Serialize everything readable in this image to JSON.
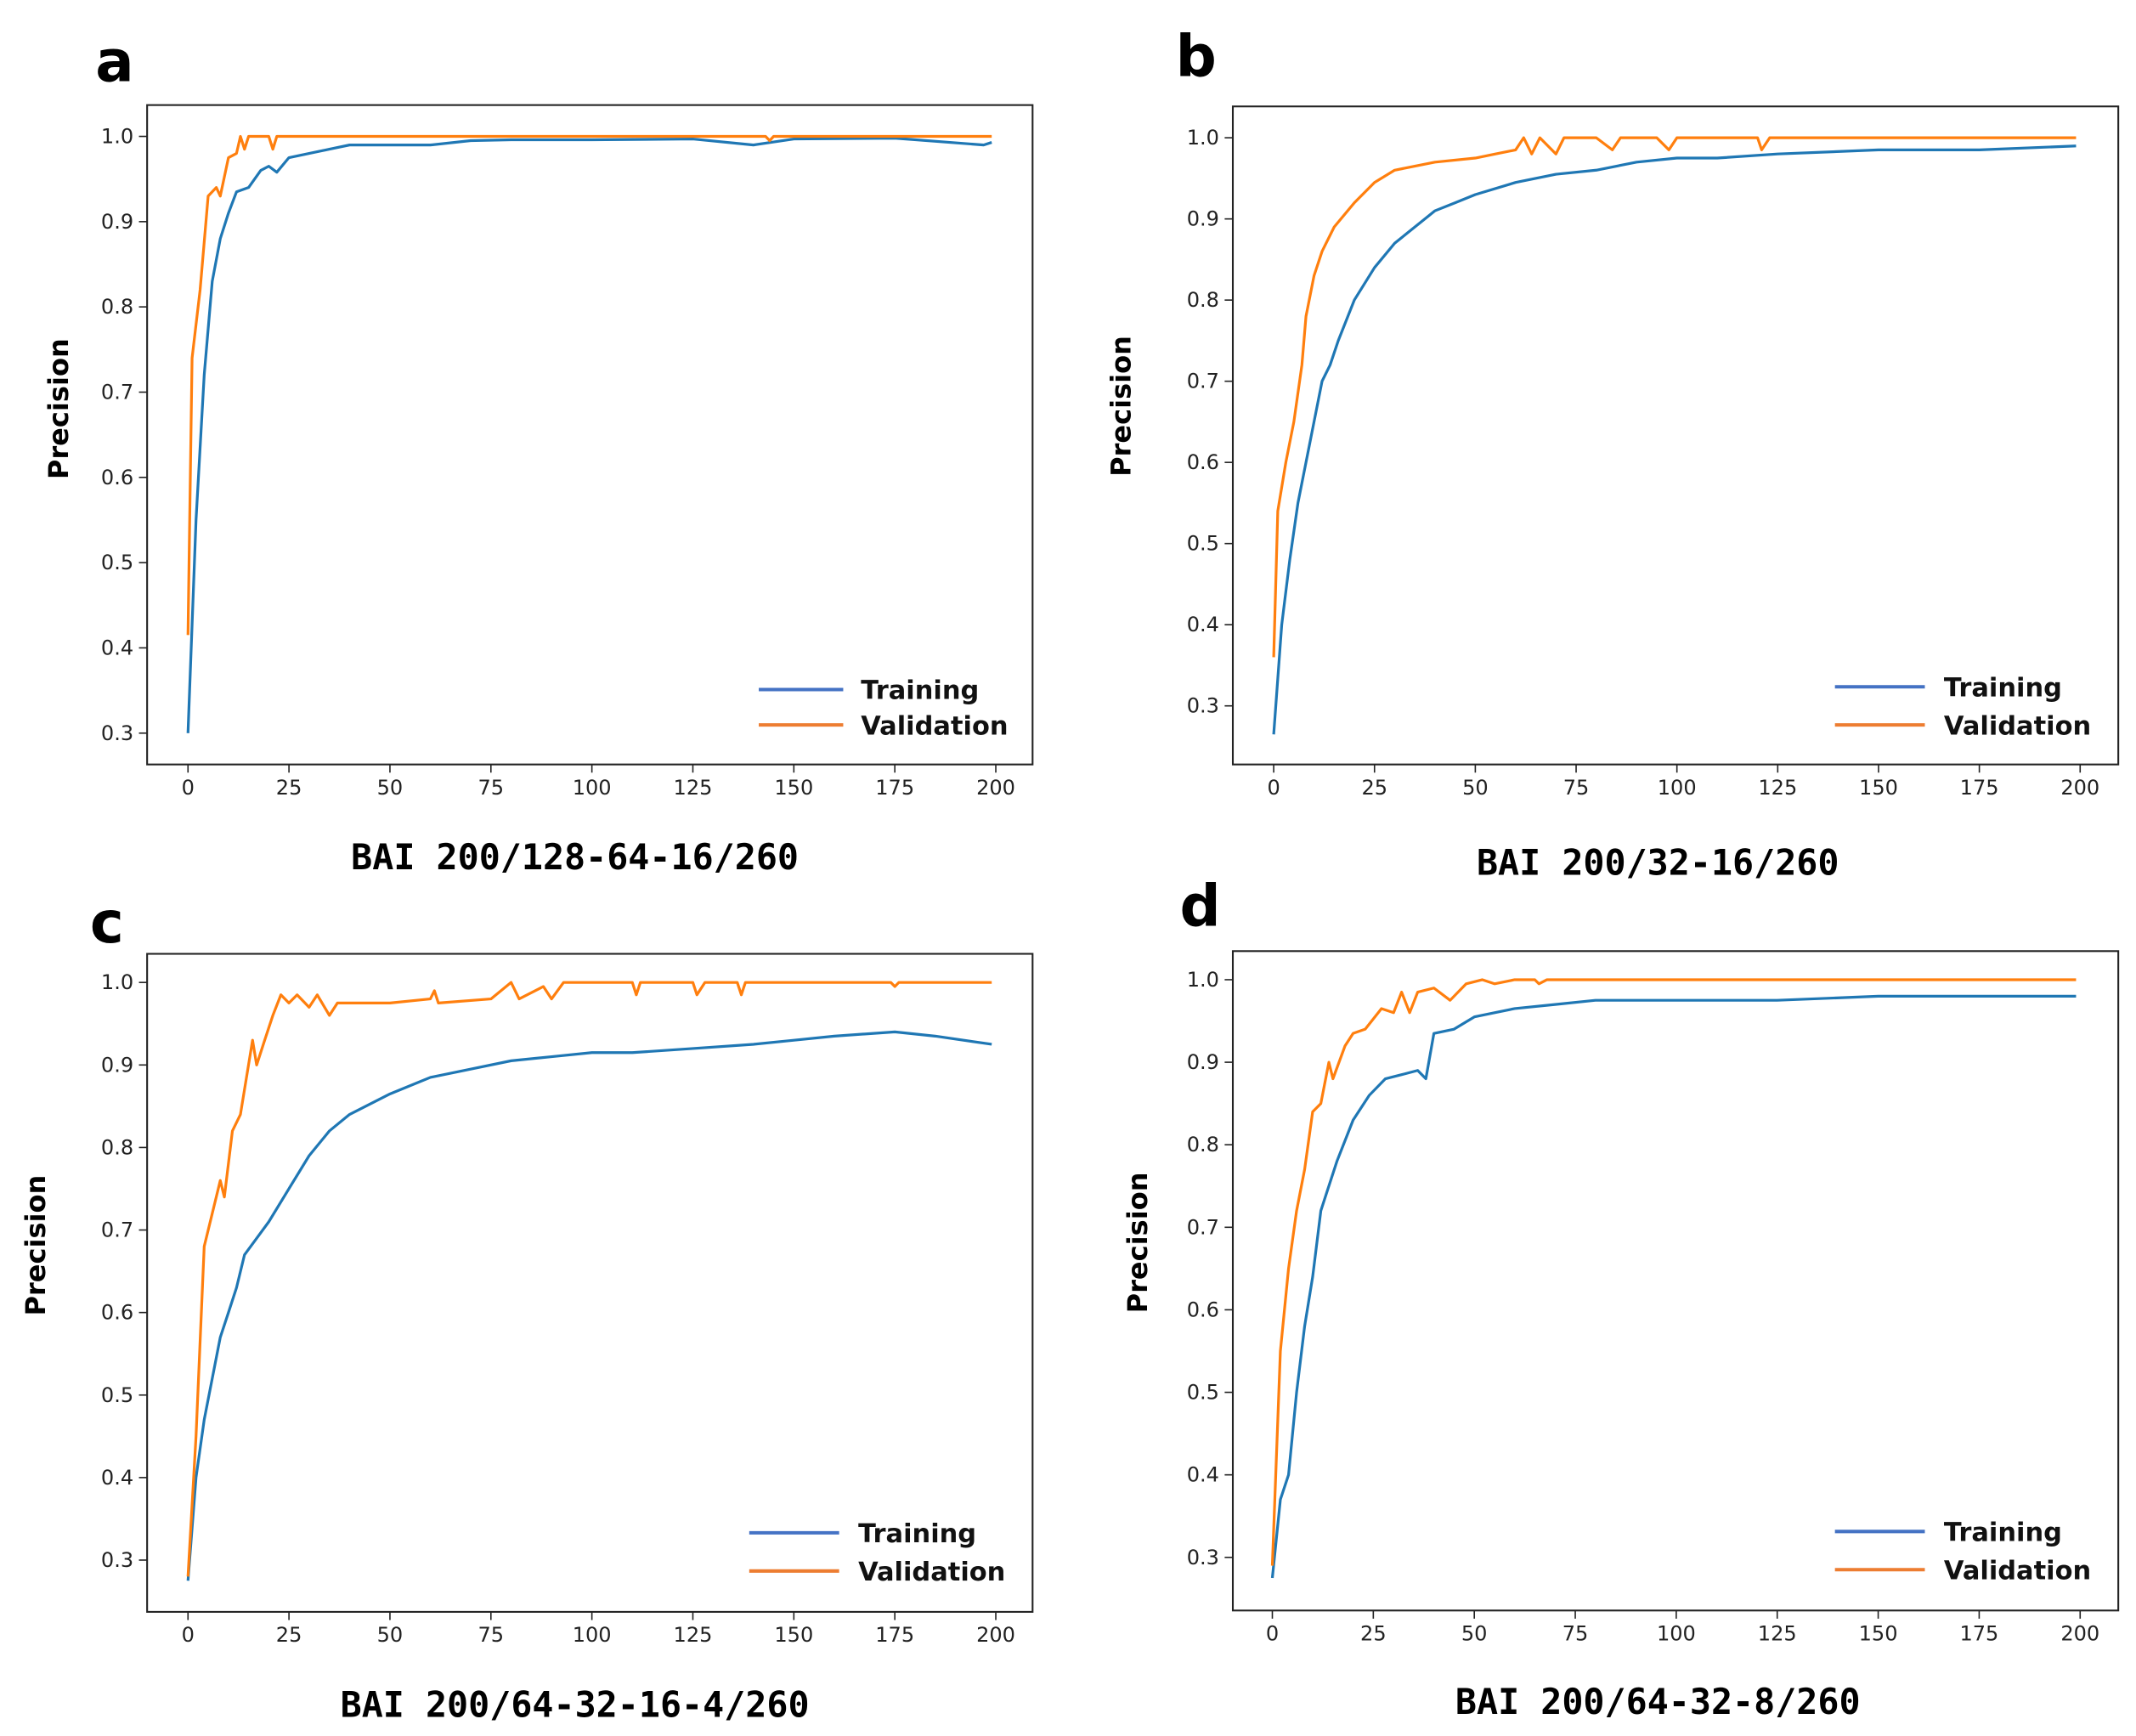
{
  "colors": {
    "training": "#1f77b4",
    "validation": "#ff7f0e",
    "legend_training": "#4472c4",
    "legend_validation": "#ed7d31"
  },
  "chart_data": [
    {
      "panel": "a",
      "type": "line",
      "title": "BAI 200/128-64-16/260",
      "xlabel": "",
      "ylabel": "Precision",
      "xlim": [
        0,
        200
      ],
      "ylim": [
        0.3,
        1.0
      ],
      "xticks": [
        0,
        25,
        50,
        75,
        100,
        125,
        150,
        175,
        200
      ],
      "yticks": [
        "0.3",
        "0.4",
        "0.5",
        "0.6",
        "0.7",
        "0.8",
        "0.9",
        "1.0"
      ],
      "legend": [
        "Training",
        "Validation"
      ],
      "legend_position": "lower-right",
      "series": [
        {
          "name": "Training",
          "x": [
            0,
            2,
            4,
            6,
            8,
            10,
            12,
            15,
            18,
            20,
            22,
            25,
            30,
            35,
            40,
            50,
            60,
            70,
            80,
            100,
            125,
            140,
            150,
            175,
            197,
            199
          ],
          "y": [
            0.3,
            0.55,
            0.72,
            0.83,
            0.88,
            0.91,
            0.935,
            0.94,
            0.96,
            0.965,
            0.958,
            0.975,
            0.98,
            0.985,
            0.99,
            0.99,
            0.99,
            0.995,
            0.996,
            0.996,
            0.997,
            0.99,
            0.997,
            0.998,
            0.99,
            0.993
          ]
        },
        {
          "name": "Validation",
          "x": [
            0,
            1,
            3,
            5,
            7,
            8,
            10,
            12,
            13,
            14,
            15,
            20,
            21,
            22,
            143,
            144,
            145,
            199
          ],
          "y": [
            0.415,
            0.74,
            0.82,
            0.93,
            0.94,
            0.93,
            0.975,
            0.98,
            1.0,
            0.985,
            1.0,
            1.0,
            0.985,
            1.0,
            1.0,
            0.995,
            1.0,
            1.0
          ]
        }
      ]
    },
    {
      "panel": "b",
      "type": "line",
      "title": "BAI  200/32-16/260",
      "xlabel": "",
      "ylabel": "Precision",
      "xlim": [
        0,
        200
      ],
      "ylim": [
        0.3,
        1.0
      ],
      "xticks": [
        0,
        25,
        50,
        75,
        100,
        125,
        150,
        175,
        200
      ],
      "yticks": [
        "0.3",
        "0.4",
        "0.5",
        "0.6",
        "0.7",
        "0.8",
        "0.9",
        "1.0"
      ],
      "legend": [
        "Training",
        "Validation"
      ],
      "legend_position": "lower-right",
      "series": [
        {
          "name": "Training",
          "x": [
            0,
            2,
            4,
            6,
            8,
            10,
            12,
            14,
            16,
            20,
            25,
            30,
            35,
            40,
            45,
            50,
            60,
            70,
            80,
            90,
            100,
            110,
            125,
            150,
            175,
            199
          ],
          "y": [
            0.265,
            0.4,
            0.48,
            0.55,
            0.6,
            0.65,
            0.7,
            0.72,
            0.75,
            0.8,
            0.84,
            0.87,
            0.89,
            0.91,
            0.92,
            0.93,
            0.945,
            0.955,
            0.96,
            0.97,
            0.975,
            0.975,
            0.98,
            0.985,
            0.985,
            0.99
          ]
        },
        {
          "name": "Validation",
          "x": [
            0,
            1,
            3,
            5,
            7,
            8,
            10,
            12,
            15,
            20,
            25,
            30,
            40,
            50,
            55,
            60,
            62,
            64,
            66,
            70,
            72,
            80,
            84,
            86,
            95,
            98,
            100,
            120,
            121,
            123,
            199
          ],
          "y": [
            0.36,
            0.54,
            0.6,
            0.65,
            0.72,
            0.78,
            0.83,
            0.86,
            0.89,
            0.92,
            0.945,
            0.96,
            0.97,
            0.975,
            0.98,
            0.985,
            1.0,
            0.98,
            1.0,
            0.98,
            1.0,
            1.0,
            0.985,
            1.0,
            1.0,
            0.985,
            1.0,
            1.0,
            0.985,
            1.0,
            1.0
          ]
        }
      ]
    },
    {
      "panel": "c",
      "type": "line",
      "title": "BAI 200/64-32-16-4/260",
      "xlabel": "",
      "ylabel": "Precision",
      "xlim": [
        0,
        200
      ],
      "ylim": [
        0.3,
        1.0
      ],
      "xticks": [
        0,
        25,
        50,
        75,
        100,
        125,
        150,
        175,
        200
      ],
      "yticks": [
        "0.3",
        "0.4",
        "0.5",
        "0.6",
        "0.7",
        "0.8",
        "0.9",
        "1.0"
      ],
      "legend": [
        "Training",
        "Validation"
      ],
      "legend_position": "lower-right",
      "series": [
        {
          "name": "Training",
          "x": [
            0,
            2,
            4,
            6,
            8,
            10,
            12,
            14,
            17,
            20,
            25,
            30,
            35,
            40,
            50,
            60,
            70,
            80,
            90,
            100,
            110,
            125,
            140,
            150,
            160,
            175,
            185,
            199
          ],
          "y": [
            0.275,
            0.4,
            0.47,
            0.52,
            0.57,
            0.6,
            0.63,
            0.67,
            0.69,
            0.71,
            0.75,
            0.79,
            0.82,
            0.84,
            0.865,
            0.885,
            0.895,
            0.905,
            0.91,
            0.915,
            0.915,
            0.92,
            0.925,
            0.93,
            0.935,
            0.94,
            0.935,
            0.925
          ]
        },
        {
          "name": "Validation",
          "x": [
            0,
            2,
            4,
            6,
            8,
            9,
            11,
            13,
            16,
            17,
            19,
            21,
            23,
            25,
            27,
            30,
            32,
            35,
            37,
            45,
            50,
            60,
            61,
            62,
            75,
            80,
            82,
            88,
            90,
            93,
            110,
            111,
            112,
            125,
            126,
            128,
            136,
            137,
            138,
            174,
            175,
            176,
            199
          ],
          "y": [
            0.28,
            0.45,
            0.68,
            0.72,
            0.76,
            0.74,
            0.82,
            0.84,
            0.93,
            0.9,
            0.93,
            0.96,
            0.985,
            0.975,
            0.985,
            0.97,
            0.985,
            0.96,
            0.975,
            0.975,
            0.975,
            0.98,
            0.99,
            0.975,
            0.98,
            1.0,
            0.98,
            0.995,
            0.98,
            1.0,
            1.0,
            0.985,
            1.0,
            1.0,
            0.985,
            1.0,
            1.0,
            0.985,
            1.0,
            1.0,
            0.995,
            1.0,
            1.0
          ]
        }
      ]
    },
    {
      "panel": "d",
      "type": "line",
      "title": "BAI 200/64-32-8/260",
      "xlabel": "",
      "ylabel": "Precision",
      "xlim": [
        0,
        200
      ],
      "ylim": [
        0.3,
        1.0
      ],
      "xticks": [
        0,
        25,
        50,
        75,
        100,
        125,
        150,
        175,
        200
      ],
      "yticks": [
        "0.3",
        "0.4",
        "0.5",
        "0.6",
        "0.7",
        "0.8",
        "0.9",
        "1.0"
      ],
      "legend": [
        "Training",
        "Validation"
      ],
      "legend_position": "lower-right",
      "series": [
        {
          "name": "Training",
          "x": [
            0,
            2,
            4,
            6,
            8,
            10,
            12,
            14,
            16,
            20,
            24,
            28,
            32,
            36,
            38,
            40,
            45,
            50,
            55,
            60,
            70,
            80,
            100,
            125,
            150,
            175,
            199
          ],
          "y": [
            0.275,
            0.37,
            0.4,
            0.5,
            0.58,
            0.64,
            0.72,
            0.75,
            0.78,
            0.83,
            0.86,
            0.88,
            0.885,
            0.89,
            0.88,
            0.935,
            0.94,
            0.955,
            0.96,
            0.965,
            0.97,
            0.975,
            0.975,
            0.975,
            0.98,
            0.98,
            0.98
          ]
        },
        {
          "name": "Validation",
          "x": [
            0,
            2,
            4,
            6,
            8,
            10,
            12,
            14,
            15,
            18,
            20,
            23,
            27,
            30,
            32,
            34,
            36,
            40,
            44,
            48,
            52,
            55,
            60,
            65,
            66,
            68,
            199
          ],
          "y": [
            0.29,
            0.55,
            0.65,
            0.72,
            0.77,
            0.84,
            0.85,
            0.9,
            0.88,
            0.92,
            0.935,
            0.94,
            0.965,
            0.96,
            0.985,
            0.96,
            0.985,
            0.99,
            0.975,
            0.995,
            1.0,
            0.995,
            1.0,
            1.0,
            0.995,
            1.0,
            1.0
          ]
        }
      ]
    }
  ]
}
